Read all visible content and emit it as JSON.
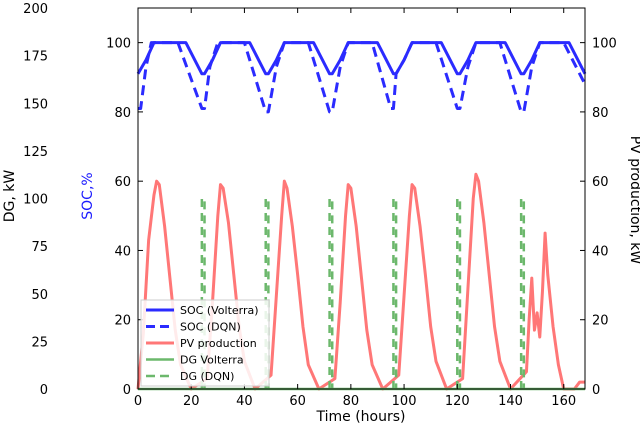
{
  "chart_data": {
    "type": "line",
    "xlabel": "Time (hours)",
    "xlim": [
      0,
      168
    ],
    "x_ticks": [
      0,
      20,
      40,
      60,
      80,
      100,
      120,
      140,
      160
    ],
    "axes": {
      "dg": {
        "label": "DG, kW",
        "lim": [
          0,
          200
        ],
        "ticks": [
          0,
          25,
          50,
          75,
          100,
          125,
          150,
          175,
          200
        ]
      },
      "soc": {
        "label": "SOC,%",
        "lim": [
          0,
          110
        ],
        "ticks": [
          0,
          20,
          40,
          60,
          80,
          100
        ],
        "color": "#1a1aff"
      },
      "pv": {
        "label": "PV production, kW",
        "lim": [
          0,
          110
        ],
        "ticks": [
          0,
          20,
          40,
          60,
          80,
          100
        ]
      }
    },
    "series": [
      {
        "name": "SOC (Volterra)",
        "axis": "soc",
        "color": "#2b2bff",
        "style": "solid",
        "width": 3,
        "x": [
          0,
          3,
          6,
          9,
          18,
          24,
          25,
          28,
          31,
          42,
          48,
          49,
          52,
          55,
          66,
          72,
          73,
          76,
          79,
          90,
          96,
          97,
          100,
          103,
          114,
          120,
          121,
          124,
          127,
          138,
          144,
          145,
          148,
          151,
          162,
          168
        ],
        "y": [
          91,
          95,
          100,
          100,
          100,
          91,
          91,
          95,
          100,
          100,
          91,
          91,
          95,
          100,
          100,
          91,
          91,
          95,
          100,
          100,
          91,
          91,
          95,
          100,
          100,
          91,
          91,
          95,
          100,
          100,
          91,
          91,
          95,
          100,
          100,
          91
        ]
      },
      {
        "name": "SOC (DQN)",
        "axis": "soc",
        "color": "#2b2bff",
        "style": "dashed",
        "width": 3,
        "x": [
          0,
          1,
          3,
          5,
          8,
          15,
          24,
          25,
          27,
          30,
          40,
          48,
          49,
          52,
          55,
          64,
          72,
          73,
          76,
          79,
          88,
          95,
          96,
          97,
          100,
          103,
          112,
          120,
          121,
          124,
          127,
          136,
          144,
          145,
          148,
          151,
          160,
          168
        ],
        "y": [
          81,
          81,
          93,
          100,
          100,
          100,
          81,
          81,
          93,
          100,
          100,
          80,
          80,
          93,
          100,
          100,
          80,
          80,
          93,
          100,
          100,
          81,
          81,
          91,
          95,
          100,
          100,
          81,
          81,
          93,
          100,
          100,
          80,
          80,
          93,
          100,
          100,
          88
        ]
      },
      {
        "name": "PV production",
        "axis": "pv",
        "color": "#ff7777",
        "style": "solid",
        "width": 3,
        "x": [
          0,
          2,
          4,
          6,
          7,
          8,
          10,
          12,
          14,
          16,
          20,
          26,
          28,
          30,
          31,
          32,
          34,
          36,
          38,
          40,
          44,
          50,
          52,
          54,
          55,
          56,
          58,
          60,
          62,
          64,
          68,
          74,
          76,
          78,
          79,
          80,
          82,
          84,
          86,
          88,
          92,
          98,
          100,
          102,
          103,
          104,
          106,
          108,
          110,
          112,
          116,
          122,
          124,
          126,
          127,
          128,
          130,
          132,
          134,
          136,
          140,
          146,
          147,
          148,
          149,
          150,
          151,
          152,
          153,
          154,
          156,
          158,
          160,
          164,
          166,
          168
        ],
        "y": [
          0,
          16,
          43,
          56,
          60,
          59,
          47,
          32,
          17,
          7,
          0,
          3,
          25,
          50,
          59,
          58,
          48,
          33,
          18,
          8,
          0,
          4,
          27,
          50,
          60,
          58,
          47,
          33,
          18,
          7,
          0,
          3,
          25,
          50,
          59,
          58,
          47,
          32,
          17,
          7,
          0,
          4,
          27,
          50,
          59,
          58,
          47,
          33,
          18,
          8,
          0,
          3,
          29,
          55,
          62,
          60,
          48,
          33,
          18,
          8,
          0,
          5,
          20,
          32,
          17,
          22,
          15,
          28,
          45,
          33,
          18,
          7,
          0,
          0,
          2,
          2
        ]
      },
      {
        "name": "DG Volterra",
        "axis": "dg",
        "color": "#6cb86c",
        "style": "solid",
        "width": 2.5,
        "x": [
          0,
          168
        ],
        "y": [
          0,
          0
        ]
      },
      {
        "name": "DG (DQN)",
        "axis": "dg",
        "color": "#6cb86c",
        "style": "dashed",
        "width": 2.5,
        "pulses": [
          {
            "start": 24,
            "end": 25,
            "value": 100
          },
          {
            "start": 48,
            "end": 49,
            "value": 100
          },
          {
            "start": 72,
            "end": 73,
            "value": 100
          },
          {
            "start": 96,
            "end": 97,
            "value": 100
          },
          {
            "start": 120,
            "end": 121,
            "value": 100
          },
          {
            "start": 144,
            "end": 145,
            "value": 100
          }
        ]
      }
    ],
    "legend": {
      "placement": "lower-left",
      "entries": [
        "SOC (Volterra)",
        "SOC (DQN)",
        "PV production",
        "DG Volterra",
        "DG (DQN)"
      ]
    }
  }
}
